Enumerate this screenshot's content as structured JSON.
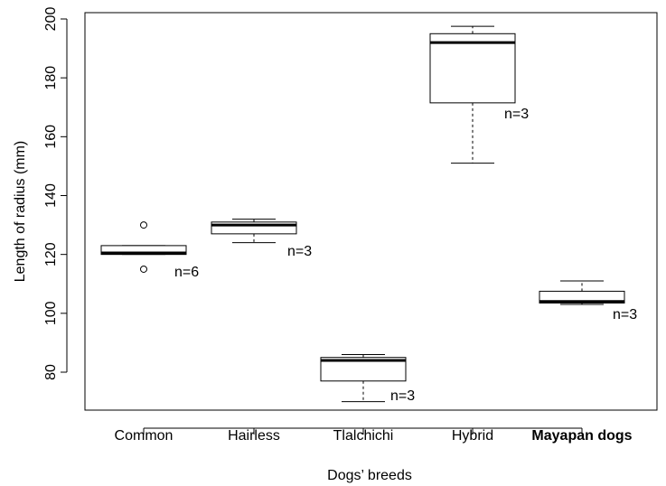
{
  "chart_data": {
    "type": "boxplot",
    "xlabel": "Dogs’ breeds",
    "ylabel": "Length of radius (mm)",
    "ylim": [
      65,
      204
    ],
    "yticks": [
      80,
      100,
      120,
      140,
      160,
      180,
      200
    ],
    "grid": false,
    "categories": [
      "Common",
      "Hairless",
      "Tlalchichi",
      "Hybrid",
      "Mayapan dogs"
    ],
    "bold_categories": [
      "Mayapan dogs"
    ],
    "boxes": [
      {
        "category": "Common",
        "min": 120,
        "q1": 120,
        "median": 120.5,
        "q3": 123,
        "max": 123,
        "outliers": [
          130,
          115
        ],
        "n_label": "n=6"
      },
      {
        "category": "Hairless",
        "min": 124,
        "q1": 127,
        "median": 130,
        "q3": 131,
        "max": 132,
        "outliers": [],
        "n_label": "n=3"
      },
      {
        "category": "Tlalchichi",
        "min": 70,
        "q1": 77,
        "median": 84,
        "q3": 85,
        "max": 86,
        "outliers": [],
        "n_label": "n=3"
      },
      {
        "category": "Hybrid",
        "min": 151,
        "q1": 171.5,
        "median": 192,
        "q3": 195,
        "max": 197.5,
        "outliers": [],
        "n_label": "n=3"
      },
      {
        "category": "Mayapan dogs",
        "min": 103,
        "q1": 103.5,
        "median": 104,
        "q3": 107.5,
        "max": 111,
        "outliers": [],
        "n_label": "n=3"
      }
    ]
  }
}
